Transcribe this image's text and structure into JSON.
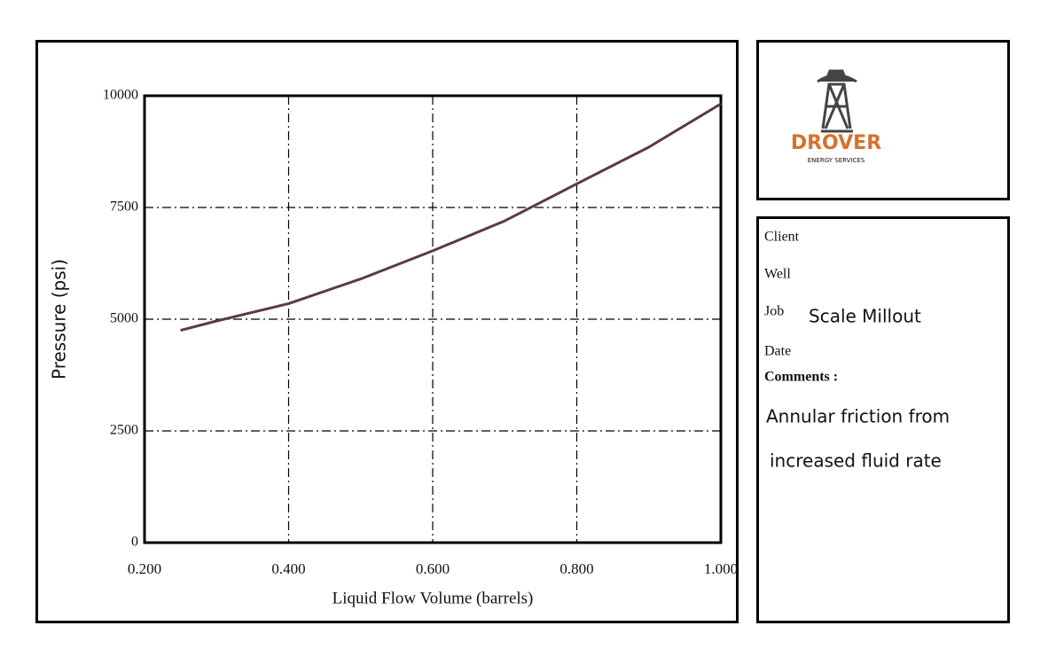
{
  "chart_data": {
    "type": "line",
    "x_label": "Liquid Flow Volume (barrels)",
    "y_label": "Pressure (psi)",
    "x": [
      0.25,
      0.3,
      0.4,
      0.5,
      0.6,
      0.7,
      0.8,
      0.9,
      1.0
    ],
    "values": [
      4750,
      4960,
      5350,
      5900,
      6530,
      7200,
      8030,
      8850,
      9820
    ],
    "color": "#5a3c3c",
    "xlim": [
      0.2,
      1.0
    ],
    "xticks": [
      {
        "value": 0.2,
        "label": "0.200"
      },
      {
        "value": 0.4,
        "label": "0.400"
      },
      {
        "value": 0.6,
        "label": "0.600"
      },
      {
        "value": 0.8,
        "label": "0.800"
      },
      {
        "value": 1.0,
        "label": "1.000"
      }
    ],
    "ylim": [
      0,
      10000
    ],
    "yticks": [
      0,
      2500,
      5000,
      7500,
      10000
    ],
    "grid": true
  },
  "logo": {
    "name": "DROVER",
    "tagline": "ENERGY SERVICES"
  },
  "info": {
    "client_label": "Client",
    "well_label": "Well",
    "job_label": "Job",
    "job_value": "Scale Millout",
    "date_label": "Date",
    "comments_label": "Comments :",
    "comments": [
      "Annular friction from",
      "increased fluid rate"
    ]
  }
}
